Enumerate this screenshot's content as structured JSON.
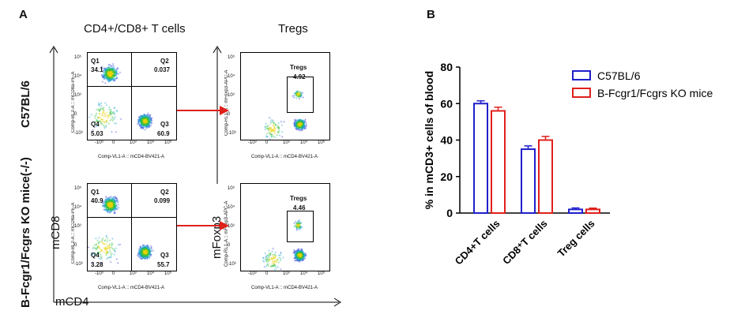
{
  "panel_a": {
    "letter": "A",
    "col_headers": [
      "CD4+/CD8+ T cells",
      "Tregs"
    ],
    "row_labels": [
      "C57BL/6",
      "B-Fcgr1/Fcgrs KO mice(-/-)"
    ],
    "axis_y_label": "mCD8",
    "axis_x_label": "mCD4",
    "axis_y_label2": "mFoxp3",
    "flow_x_title": "Comp-VL1-A :: mCD4-BV421-A",
    "flow_y_title_cd8": "Comp-BL2-A :: mCD8a-PE-A",
    "flow_y_title_foxp3": "Comp-RL1-A :: mFoxp3-APC-A",
    "x_ticks": [
      "-10³",
      "0",
      "10³",
      "10⁴",
      "10⁵"
    ],
    "y_ticks": [
      "10⁵",
      "10⁴",
      "10³",
      "0",
      "-10³"
    ],
    "quadrant_plots": [
      {
        "q1": "Q1",
        "q1v": "34.1",
        "q2": "Q2",
        "q2v": "0.037",
        "q3": "Q3",
        "q3v": "60.9",
        "q4": "Q4",
        "q4v": "5.03"
      },
      {
        "q1": "Q1",
        "q1v": "40.9",
        "q2": "Q2",
        "q2v": "0.099",
        "q3": "Q3",
        "q3v": "55.7",
        "q4": "Q4",
        "q4v": "3.28"
      }
    ],
    "treg_plots": [
      {
        "gate": "Tregs",
        "value": "4.92"
      },
      {
        "gate": "Tregs",
        "value": "4.46"
      }
    ]
  },
  "panel_b": {
    "letter": "B"
  },
  "chart_data": {
    "type": "bar",
    "categories": [
      "CD4+T cells",
      "CD8⁺T cells",
      "Treg cells"
    ],
    "series": [
      {
        "name": "C57BL/6",
        "values": [
          60,
          35,
          2
        ],
        "errors": [
          1.5,
          1.8,
          0.8
        ],
        "color": "#1f1fcc"
      },
      {
        "name": "B-Fcgr1/Fcgrs KO mice",
        "values": [
          56,
          40,
          2
        ],
        "errors": [
          2.0,
          2.0,
          0.7
        ],
        "color": "#e0201b"
      }
    ],
    "ylabel": "% in mCD3+ cells of blood",
    "ylim": [
      0,
      80
    ],
    "yticks": [
      "0",
      "20",
      "40",
      "60",
      "80"
    ],
    "legend_position": "top-right",
    "grid": false
  }
}
